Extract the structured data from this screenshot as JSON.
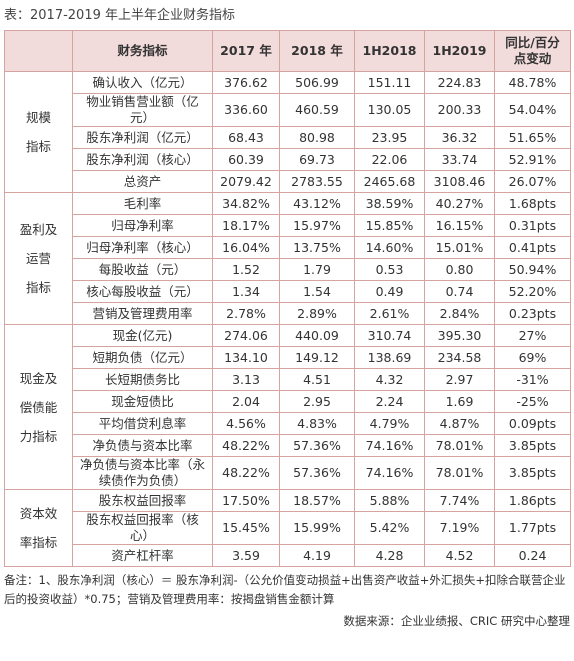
{
  "title": "表：2017-2019 年上半年企业财务指标",
  "table": {
    "header": [
      "",
      "财务指标",
      "2017 年",
      "2018 年",
      "1H2018",
      "1H2019",
      "同比/百分点变动"
    ],
    "groups": [
      {
        "label": [
          "规模",
          "指标"
        ],
        "rows": [
          [
            "确认收入（亿元）",
            "376.62",
            "506.99",
            "151.11",
            "224.83",
            "48.78%"
          ],
          [
            "物业销售营业额（亿元）",
            "336.60",
            "460.59",
            "130.05",
            "200.33",
            "54.04%"
          ],
          [
            "股东净利润（亿元）",
            "68.43",
            "80.98",
            "23.95",
            "36.32",
            "51.65%"
          ],
          [
            "股东净利润（核心）",
            "60.39",
            "69.73",
            "22.06",
            "33.74",
            "52.91%"
          ],
          [
            "总资产",
            "2079.42",
            "2783.55",
            "2465.68",
            "3108.46",
            "26.07%"
          ]
        ]
      },
      {
        "label": [
          "盈利及",
          "运营",
          "指标"
        ],
        "rows": [
          [
            "毛利率",
            "34.82%",
            "43.12%",
            "38.59%",
            "40.27%",
            "1.68pts"
          ],
          [
            "归母净利率",
            "18.17%",
            "15.97%",
            "15.85%",
            "16.15%",
            "0.31pts"
          ],
          [
            "归母净利率（核心）",
            "16.04%",
            "13.75%",
            "14.60%",
            "15.01%",
            "0.41pts"
          ],
          [
            "每股收益（元）",
            "1.52",
            "1.79",
            "0.53",
            "0.80",
            "50.94%"
          ],
          [
            "核心每股收益（元）",
            "1.34",
            "1.54",
            "0.49",
            "0.74",
            "52.20%"
          ],
          [
            "营销及管理费用率",
            "2.78%",
            "2.89%",
            "2.61%",
            "2.84%",
            "0.23pts"
          ]
        ]
      },
      {
        "label": [
          "现金及",
          "偿债能",
          "力指标"
        ],
        "rows": [
          [
            "现金(亿元)",
            "274.06",
            "440.09",
            "310.74",
            "395.30",
            "27%"
          ],
          [
            "短期负债（亿元）",
            "134.10",
            "149.12",
            "138.69",
            "234.58",
            "69%"
          ],
          [
            "长短期债务比",
            "3.13",
            "4.51",
            "4.32",
            "2.97",
            "-31%"
          ],
          [
            "现金短债比",
            "2.04",
            "2.95",
            "2.24",
            "1.69",
            "-25%"
          ],
          [
            "平均借贷利息率",
            "4.56%",
            "4.83%",
            "4.79%",
            "4.87%",
            "0.09pts"
          ],
          [
            "净负债与资本比率",
            "48.22%",
            "57.36%",
            "74.16%",
            "78.01%",
            "3.85pts"
          ],
          [
            "净负债与资本比率（永续债作为负债）",
            "48.22%",
            "57.36%",
            "74.16%",
            "78.01%",
            "3.85pts"
          ]
        ]
      },
      {
        "label": [
          "资本效",
          "率指标"
        ],
        "rows": [
          [
            "股东权益回报率",
            "17.50%",
            "18.57%",
            "5.88%",
            "7.74%",
            "1.86pts"
          ],
          [
            "股东权益回报率（核心）",
            "15.45%",
            "15.99%",
            "5.42%",
            "7.19%",
            "1.77pts"
          ],
          [
            "资产杠杆率",
            "3.59",
            "4.19",
            "4.28",
            "4.52",
            "0.24"
          ]
        ]
      }
    ]
  },
  "notes": {
    "remark": "备注：1、股东净利润（核心）＝ 股东净利润-（公允价值变动损益+出售资产收益+外汇损失+扣除合联营企业后的投资收益）*0.75；营销及管理费用率：按揭盘销售金额计算",
    "source": "数据来源：企业业绩报、CRIC 研究中心整理"
  }
}
